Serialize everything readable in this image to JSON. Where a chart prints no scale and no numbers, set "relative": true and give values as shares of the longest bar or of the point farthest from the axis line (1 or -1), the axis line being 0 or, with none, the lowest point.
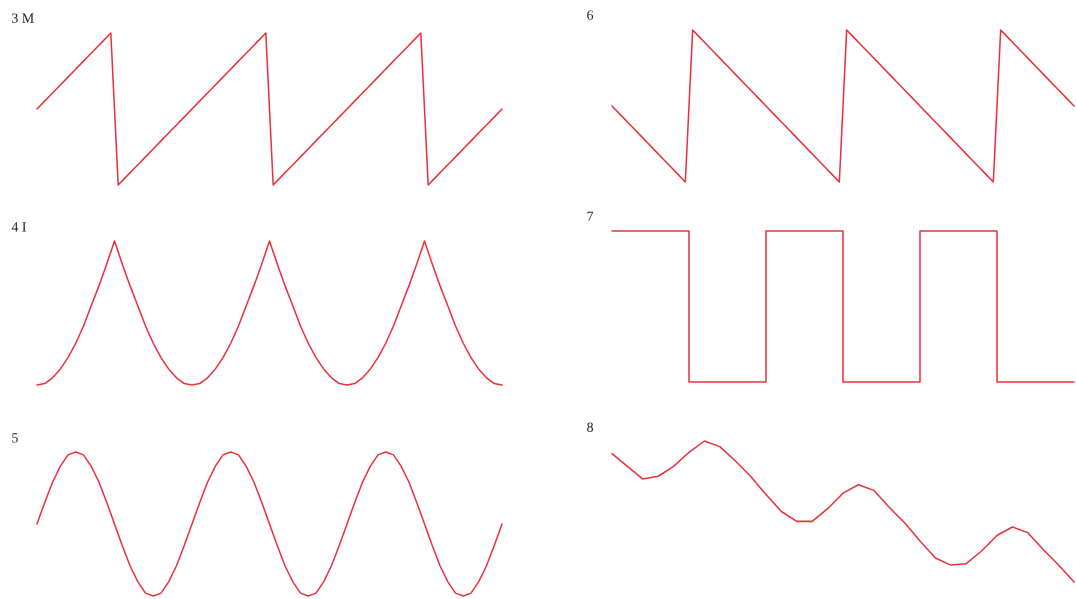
{
  "chart_data": [
    {
      "type": "line",
      "title": "3 M",
      "relative": true,
      "categories": [
        null,
        null,
        null,
        null,
        null,
        null,
        null,
        null,
        null,
        null,
        null,
        null,
        null,
        null,
        null,
        null,
        null,
        null,
        null,
        null,
        null,
        null,
        null,
        null,
        null,
        null,
        null,
        null,
        null,
        null,
        null,
        null,
        null,
        null,
        null,
        null,
        null,
        null,
        null,
        null,
        null,
        null,
        null,
        null,
        null,
        null,
        null,
        null,
        null,
        null,
        null,
        null,
        null,
        null,
        null,
        null,
        null,
        null,
        null,
        null,
        null,
        null,
        null,
        null
      ],
      "series": [
        {
          "color": "#e8333d",
          "values": [
            0.5,
            0.55,
            0.6,
            0.65,
            0.7,
            0.75,
            0.8,
            0.85,
            0.9,
            0.95,
            1,
            0,
            0.05,
            0.1,
            0.15,
            0.2,
            0.25,
            0.3,
            0.35,
            0.4,
            0.45,
            0.5,
            0.55,
            0.6,
            0.65,
            0.7,
            0.75,
            0.8,
            0.85,
            0.9,
            0.95,
            1,
            0,
            0.05,
            0.1,
            0.15,
            0.2,
            0.25,
            0.3,
            0.35,
            0.4,
            0.45,
            0.5,
            0.55,
            0.6,
            0.65,
            0.7,
            0.75,
            0.8,
            0.85,
            0.9,
            0.95,
            1,
            0,
            0.05,
            0.1,
            0.15,
            0.2,
            0.25,
            0.3,
            0.35,
            0.4,
            0.45,
            0.5
          ]
        }
      ]
    },
    {
      "type": "line",
      "title": "6",
      "relative": true,
      "categories": [
        null,
        null,
        null,
        null,
        null,
        null,
        null,
        null,
        null,
        null,
        null,
        null,
        null,
        null,
        null,
        null,
        null,
        null,
        null,
        null,
        null,
        null,
        null,
        null,
        null,
        null,
        null,
        null,
        null,
        null,
        null,
        null,
        null,
        null,
        null,
        null,
        null,
        null,
        null,
        null,
        null,
        null,
        null,
        null,
        null,
        null,
        null,
        null,
        null,
        null,
        null,
        null,
        null,
        null,
        null,
        null,
        null,
        null,
        null,
        null,
        null,
        null,
        null,
        null
      ],
      "series": [
        {
          "color": "#e8333d",
          "values": [
            0.5,
            0.45,
            0.4,
            0.35,
            0.3,
            0.25,
            0.2,
            0.15,
            0.1,
            0.05,
            0,
            1,
            0.95,
            0.9,
            0.85,
            0.8,
            0.75,
            0.7,
            0.65,
            0.6,
            0.55,
            0.5,
            0.45,
            0.4,
            0.35,
            0.3,
            0.25,
            0.2,
            0.15,
            0.1,
            0.05,
            0,
            1,
            0.95,
            0.9,
            0.85,
            0.8,
            0.75,
            0.7,
            0.65,
            0.6,
            0.55,
            0.5,
            0.45,
            0.4,
            0.35,
            0.3,
            0.25,
            0.2,
            0.15,
            0.1,
            0.05,
            0,
            1,
            0.95,
            0.9,
            0.85,
            0.8,
            0.75,
            0.7,
            0.65,
            0.6,
            0.55,
            0.5
          ]
        }
      ]
    },
    {
      "type": "line",
      "title": "4 I",
      "relative": true,
      "categories": [
        null,
        null,
        null,
        null,
        null,
        null,
        null,
        null,
        null,
        null,
        null,
        null,
        null,
        null,
        null,
        null,
        null,
        null,
        null,
        null,
        null,
        null,
        null,
        null,
        null,
        null,
        null,
        null,
        null,
        null,
        null,
        null,
        null,
        null,
        null,
        null,
        null,
        null,
        null,
        null,
        null,
        null,
        null,
        null,
        null,
        null,
        null,
        null,
        null,
        null,
        null,
        null,
        null,
        null,
        null,
        null,
        null,
        null,
        null,
        null,
        null
      ],
      "series": [
        {
          "color": "#e8333d",
          "values": [
            0,
            0.01,
            0.05,
            0.11,
            0.19,
            0.29,
            0.41,
            0.55,
            0.69,
            0.84,
            1,
            0.84,
            0.69,
            0.55,
            0.41,
            0.29,
            0.19,
            0.11,
            0.05,
            0.01,
            0,
            0.01,
            0.05,
            0.11,
            0.19,
            0.29,
            0.41,
            0.55,
            0.69,
            0.84,
            1,
            0.84,
            0.69,
            0.55,
            0.41,
            0.29,
            0.19,
            0.11,
            0.05,
            0.01,
            0,
            0.01,
            0.05,
            0.11,
            0.19,
            0.29,
            0.41,
            0.55,
            0.69,
            0.84,
            1,
            0.84,
            0.69,
            0.55,
            0.41,
            0.29,
            0.19,
            0.11,
            0.05,
            0.01,
            0
          ]
        }
      ]
    },
    {
      "type": "step",
      "title": "7",
      "relative": true,
      "categories": [
        null,
        null,
        null,
        null,
        null,
        null,
        null,
        null,
        null,
        null,
        null,
        null,
        null,
        null,
        null,
        null,
        null,
        null,
        null,
        null,
        null,
        null,
        null,
        null,
        null,
        null,
        null,
        null,
        null,
        null,
        null,
        null,
        null,
        null,
        null,
        null,
        null,
        null,
        null,
        null,
        null,
        null,
        null,
        null,
        null,
        null,
        null,
        null,
        null,
        null,
        null,
        null,
        null,
        null,
        null,
        null,
        null,
        null,
        null,
        null,
        null
      ],
      "series": [
        {
          "color": "#e8333d",
          "values": [
            1,
            1,
            1,
            1,
            1,
            1,
            1,
            1,
            1,
            1,
            0,
            0,
            0,
            0,
            0,
            0,
            0,
            0,
            0,
            0,
            1,
            1,
            1,
            1,
            1,
            1,
            1,
            1,
            1,
            1,
            0,
            0,
            0,
            0,
            0,
            0,
            0,
            0,
            0,
            0,
            1,
            1,
            1,
            1,
            1,
            1,
            1,
            1,
            1,
            1,
            0,
            0,
            0,
            0,
            0,
            0,
            0,
            0,
            0,
            0,
            0
          ]
        }
      ]
    },
    {
      "type": "line",
      "title": "5",
      "relative": true,
      "categories": [
        null,
        null,
        null,
        null,
        null,
        null,
        null,
        null,
        null,
        null,
        null,
        null,
        null,
        null,
        null,
        null,
        null,
        null,
        null,
        null,
        null,
        null,
        null,
        null,
        null,
        null,
        null,
        null,
        null,
        null,
        null,
        null,
        null,
        null,
        null,
        null,
        null,
        null,
        null,
        null,
        null,
        null,
        null,
        null,
        null,
        null,
        null,
        null,
        null,
        null,
        null,
        null,
        null,
        null,
        null,
        null,
        null,
        null,
        null,
        null,
        null
      ],
      "series": [
        {
          "color": "#e8333d",
          "values": [
            0.5,
            0.65,
            0.79,
            0.9,
            0.98,
            1,
            0.98,
            0.9,
            0.79,
            0.65,
            0.5,
            0.35,
            0.21,
            0.1,
            0.02,
            0,
            0.02,
            0.1,
            0.21,
            0.35,
            0.5,
            0.65,
            0.79,
            0.9,
            0.98,
            1,
            0.98,
            0.9,
            0.79,
            0.65,
            0.5,
            0.35,
            0.21,
            0.1,
            0.02,
            0,
            0.02,
            0.1,
            0.21,
            0.35,
            0.5,
            0.65,
            0.79,
            0.9,
            0.98,
            1,
            0.98,
            0.9,
            0.79,
            0.65,
            0.5,
            0.35,
            0.21,
            0.1,
            0.02,
            0,
            0.02,
            0.1,
            0.21,
            0.35,
            0.5
          ]
        }
      ]
    },
    {
      "type": "line",
      "title": "8",
      "relative": true,
      "categories": [
        null,
        null,
        null,
        null,
        null,
        null,
        null,
        null,
        null,
        null,
        null,
        null,
        null,
        null,
        null,
        null,
        null,
        null,
        null,
        null,
        null,
        null,
        null,
        null,
        null,
        null,
        null,
        null,
        null,
        null,
        null
      ],
      "series": [
        {
          "color": "#e8333d",
          "values": [
            0.91,
            0.82,
            0.73,
            0.75,
            0.82,
            0.92,
            1,
            0.96,
            0.86,
            0.75,
            0.62,
            0.5,
            0.43,
            0.43,
            0.52,
            0.63,
            0.69,
            0.65,
            0.53,
            0.42,
            0.29,
            0.17,
            0.12,
            0.13,
            0.22,
            0.33,
            0.39,
            0.35,
            0.23,
            0.12,
            0
          ]
        }
      ]
    }
  ]
}
